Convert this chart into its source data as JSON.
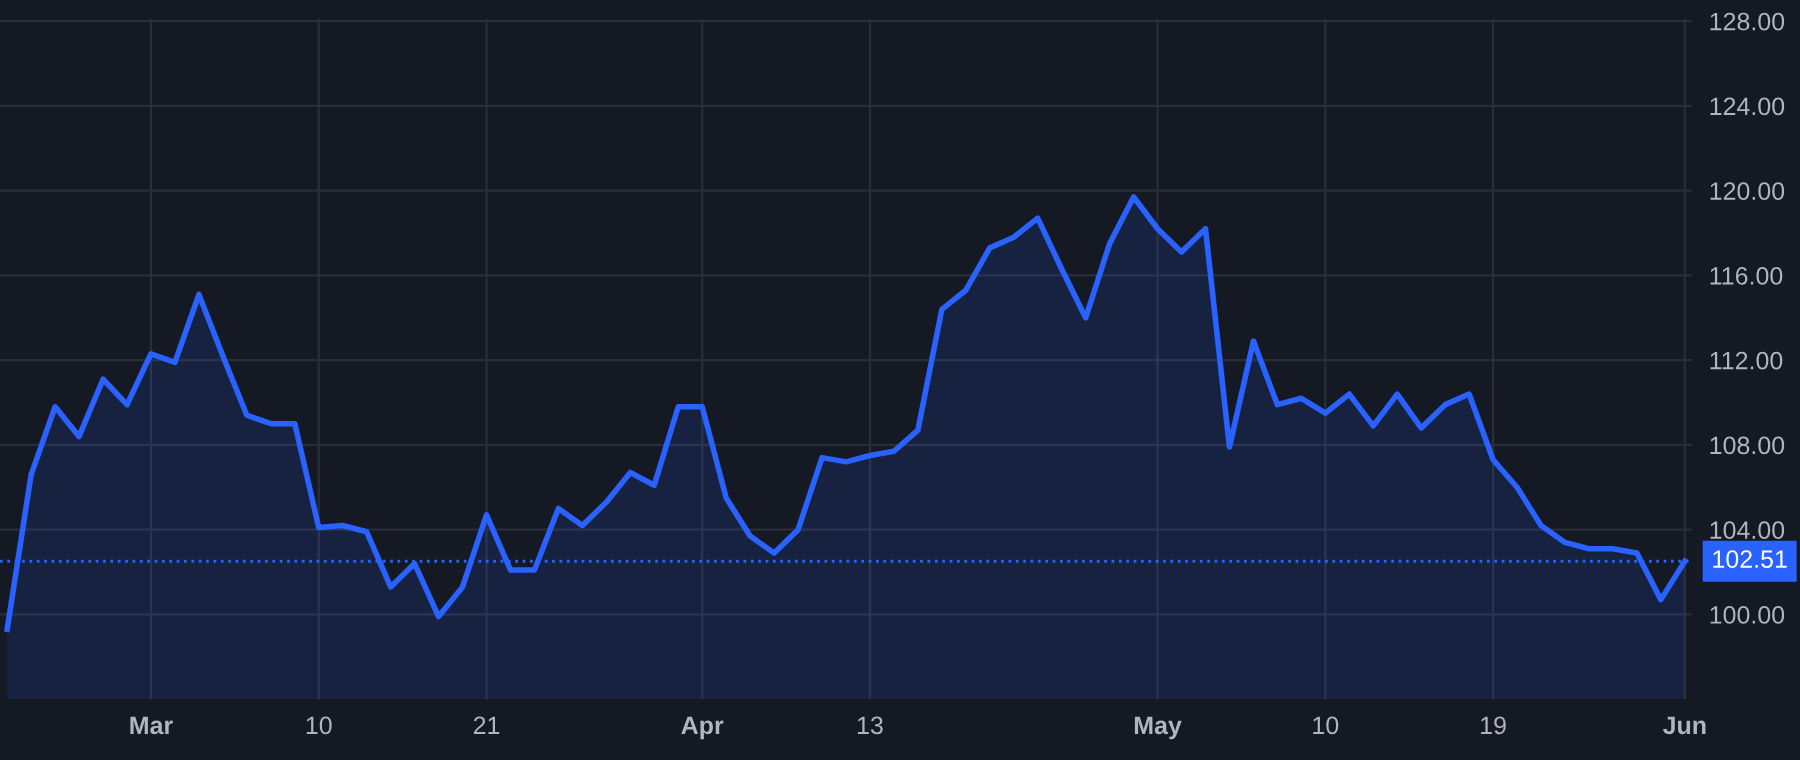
{
  "chart_data": {
    "type": "area",
    "categories": [
      null,
      null,
      null,
      null,
      null,
      null,
      "Mar",
      null,
      null,
      null,
      null,
      null,
      null,
      "10",
      null,
      null,
      null,
      null,
      null,
      null,
      "21",
      null,
      null,
      null,
      null,
      null,
      null,
      null,
      null,
      "Apr",
      null,
      null,
      null,
      null,
      null,
      null,
      "13",
      null,
      null,
      null,
      null,
      null,
      null,
      null,
      null,
      null,
      null,
      null,
      "May",
      null,
      null,
      null,
      null,
      null,
      null,
      "10",
      null,
      null,
      null,
      null,
      null,
      null,
      "19",
      null,
      null,
      null,
      null,
      null,
      null,
      null,
      "Jun"
    ],
    "series": [
      {
        "color": "#2962ff",
        "values": [
          99.3,
          106.6,
          109.8,
          108.4,
          111.1,
          109.9,
          112.3,
          111.9,
          115.1,
          112.2,
          109.4,
          109.0,
          109.0,
          104.1,
          104.2,
          103.9,
          101.3,
          102.4,
          99.9,
          101.3,
          104.7,
          102.1,
          102.1,
          105.0,
          104.2,
          105.3,
          106.7,
          106.1,
          109.8,
          109.8,
          105.5,
          103.7,
          102.9,
          104.0,
          107.4,
          107.2,
          107.5,
          107.7,
          108.7,
          114.4,
          115.3,
          117.3,
          117.8,
          118.7,
          116.3,
          114.0,
          117.5,
          119.7,
          118.2,
          117.1,
          118.2,
          107.9,
          112.9,
          109.9,
          110.2,
          109.5,
          110.4,
          108.9,
          110.4,
          108.8,
          109.9,
          110.4,
          107.3,
          106.0,
          104.2,
          103.4,
          103.1,
          103.1,
          102.9,
          100.7,
          102.51
        ]
      }
    ],
    "ylim": [
      96.0,
      128.1
    ],
    "yticks": [
      {
        "value": 100,
        "label": "100.00"
      },
      {
        "value": 104,
        "label": "104.00"
      },
      {
        "value": 108,
        "label": "108.00"
      },
      {
        "value": 112,
        "label": "112.00"
      },
      {
        "value": 116,
        "label": "116.00"
      },
      {
        "value": 120,
        "label": "120.00"
      },
      {
        "value": 124,
        "label": "124.00"
      },
      {
        "value": 128,
        "label": "128.00"
      }
    ],
    "ref_lines": [
      {
        "axis": "y",
        "value": 102.51,
        "label": "102.51",
        "color": "#2962ff",
        "line_style": "dotted"
      }
    ],
    "grid": true,
    "line_style": "solid"
  }
}
